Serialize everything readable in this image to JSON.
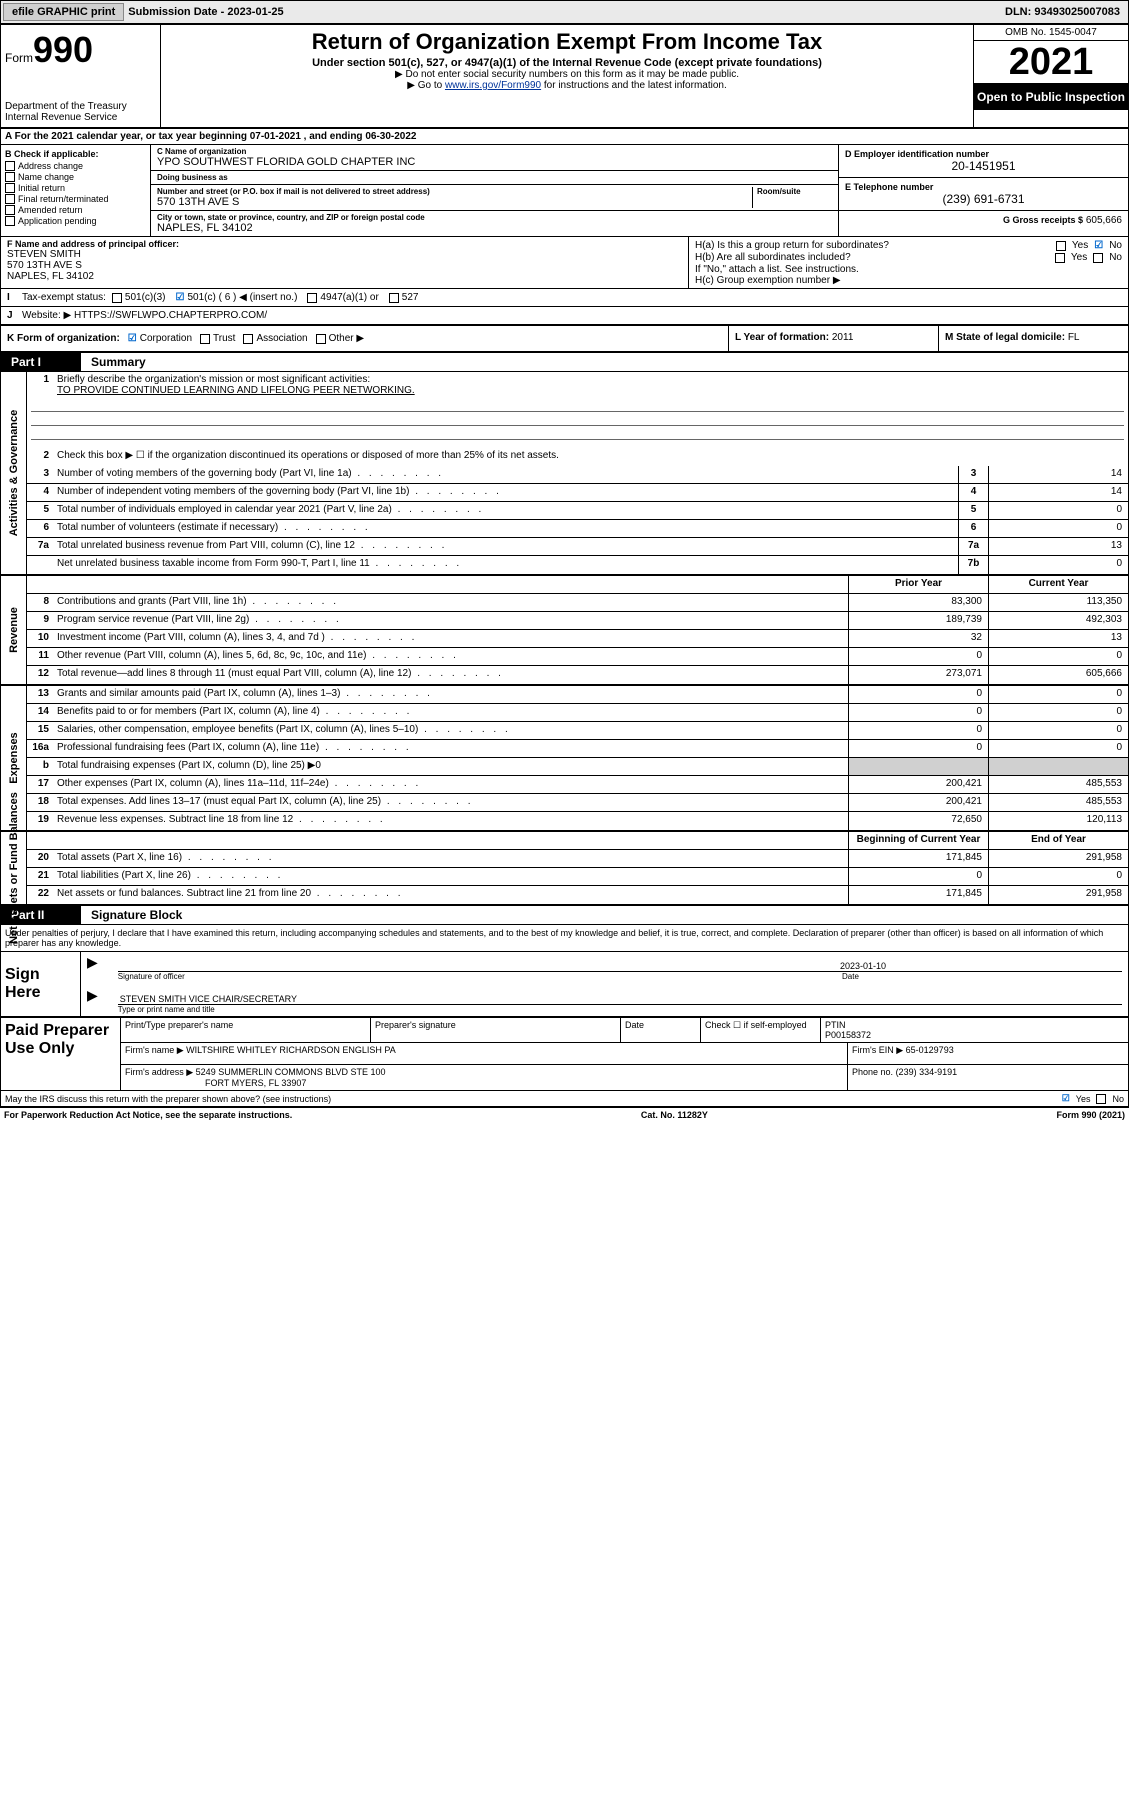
{
  "top_bar": {
    "efile": "efile GRAPHIC print",
    "sub_date_label": "Submission Date - ",
    "sub_date": "2023-01-25",
    "dln": "DLN: 93493025007083"
  },
  "header": {
    "form_word": "Form",
    "form_num": "990",
    "dept": "Department of the Treasury",
    "irs": "Internal Revenue Service",
    "title": "Return of Organization Exempt From Income Tax",
    "sub": "Under section 501(c), 527, or 4947(a)(1) of the Internal Revenue Code (except private foundations)",
    "note1": "▶ Do not enter social security numbers on this form as it may be made public.",
    "note2_pre": "▶ Go to ",
    "note2_link": "www.irs.gov/Form990",
    "note2_post": " for instructions and the latest information.",
    "omb": "OMB No. 1545-0047",
    "year": "2021",
    "open": "Open to Public Inspection"
  },
  "row_a": "A For the 2021 calendar year, or tax year beginning 07-01-2021   , and ending 06-30-2022",
  "col_b": {
    "hdr": "B Check if applicable:",
    "items": [
      "Address change",
      "Name change",
      "Initial return",
      "Final return/terminated",
      "Amended return",
      "Application pending"
    ]
  },
  "col_c": {
    "name_lbl": "C Name of organization",
    "name": "YPO SOUTHWEST FLORIDA GOLD CHAPTER INC",
    "dba_lbl": "Doing business as",
    "dba": "",
    "street_lbl": "Number and street (or P.O. box if mail is not delivered to street address)",
    "room_lbl": "Room/suite",
    "street": "570 13TH AVE S",
    "city_lbl": "City or town, state or province, country, and ZIP or foreign postal code",
    "city": "NAPLES, FL  34102"
  },
  "col_de": {
    "d_lbl": "D Employer identification number",
    "d_val": "20-1451951",
    "e_lbl": "E Telephone number",
    "e_val": "(239) 691-6731",
    "g_lbl": "G Gross receipts $",
    "g_val": "605,666"
  },
  "row_f": {
    "lbl": "F Name and address of principal officer:",
    "name": "STEVEN SMITH",
    "addr1": "570 13TH AVE S",
    "addr2": "NAPLES, FL  34102"
  },
  "row_h": {
    "ha": "H(a)  Is this a group return for subordinates?",
    "hb": "H(b)  Are all subordinates included?",
    "hb_note": "If \"No,\" attach a list. See instructions.",
    "hc": "H(c)  Group exemption number ▶",
    "yes": "Yes",
    "no": "No"
  },
  "row_i": {
    "lbl": "Tax-exempt status:",
    "o1": "501(c)(3)",
    "o2": "501(c) ( 6 ) ◀ (insert no.)",
    "o3": "4947(a)(1) or",
    "o4": "527"
  },
  "row_j": {
    "lbl": "Website: ▶",
    "val": "HTTPS://SWFLWPO.CHAPTERPRO.COM/"
  },
  "row_k": {
    "lbl": "K Form of organization:",
    "o1": "Corporation",
    "o2": "Trust",
    "o3": "Association",
    "o4": "Other ▶"
  },
  "row_l": {
    "lbl": "L Year of formation:",
    "val": "2011"
  },
  "row_m": {
    "lbl": "M State of legal domicile:",
    "val": "FL"
  },
  "part1": {
    "label": "Part I",
    "title": "Summary"
  },
  "summary": {
    "governance_label": "Activities & Governance",
    "revenue_label": "Revenue",
    "expenses_label": "Expenses",
    "netassets_label": "Net Assets or Fund Balances",
    "q1": "Briefly describe the organization's mission or most significant activities:",
    "q1_val": "TO PROVIDE CONTINUED LEARNING AND LIFELONG PEER NETWORKING.",
    "q2": "Check this box ▶ ☐ if the organization discontinued its operations or disposed of more than 25% of its net assets.",
    "lines": [
      {
        "n": "3",
        "t": "Number of voting members of the governing body (Part VI, line 1a)",
        "box": "3",
        "v2": "14"
      },
      {
        "n": "4",
        "t": "Number of independent voting members of the governing body (Part VI, line 1b)",
        "box": "4",
        "v2": "14"
      },
      {
        "n": "5",
        "t": "Total number of individuals employed in calendar year 2021 (Part V, line 2a)",
        "box": "5",
        "v2": "0"
      },
      {
        "n": "6",
        "t": "Total number of volunteers (estimate if necessary)",
        "box": "6",
        "v2": "0"
      },
      {
        "n": "7a",
        "t": "Total unrelated business revenue from Part VIII, column (C), line 12",
        "box": "7a",
        "v2": "13"
      },
      {
        "n": "",
        "t": "Net unrelated business taxable income from Form 990-T, Part I, line 11",
        "box": "7b",
        "v2": "0"
      }
    ],
    "col_prior": "Prior Year",
    "col_current": "Current Year",
    "col_begin": "Beginning of Current Year",
    "col_end": "End of Year",
    "rev": [
      {
        "n": "8",
        "t": "Contributions and grants (Part VIII, line 1h)",
        "v1": "83,300",
        "v2": "113,350"
      },
      {
        "n": "9",
        "t": "Program service revenue (Part VIII, line 2g)",
        "v1": "189,739",
        "v2": "492,303"
      },
      {
        "n": "10",
        "t": "Investment income (Part VIII, column (A), lines 3, 4, and 7d )",
        "v1": "32",
        "v2": "13"
      },
      {
        "n": "11",
        "t": "Other revenue (Part VIII, column (A), lines 5, 6d, 8c, 9c, 10c, and 11e)",
        "v1": "0",
        "v2": "0"
      },
      {
        "n": "12",
        "t": "Total revenue—add lines 8 through 11 (must equal Part VIII, column (A), line 12)",
        "v1": "273,071",
        "v2": "605,666"
      }
    ],
    "exp": [
      {
        "n": "13",
        "t": "Grants and similar amounts paid (Part IX, column (A), lines 1–3)",
        "v1": "0",
        "v2": "0"
      },
      {
        "n": "14",
        "t": "Benefits paid to or for members (Part IX, column (A), line 4)",
        "v1": "0",
        "v2": "0"
      },
      {
        "n": "15",
        "t": "Salaries, other compensation, employee benefits (Part IX, column (A), lines 5–10)",
        "v1": "0",
        "v2": "0"
      },
      {
        "n": "16a",
        "t": "Professional fundraising fees (Part IX, column (A), line 11e)",
        "v1": "0",
        "v2": "0"
      },
      {
        "n": "b",
        "t": "Total fundraising expenses (Part IX, column (D), line 25) ▶0",
        "shaded": true
      },
      {
        "n": "17",
        "t": "Other expenses (Part IX, column (A), lines 11a–11d, 11f–24e)",
        "v1": "200,421",
        "v2": "485,553"
      },
      {
        "n": "18",
        "t": "Total expenses. Add lines 13–17 (must equal Part IX, column (A), line 25)",
        "v1": "200,421",
        "v2": "485,553"
      },
      {
        "n": "19",
        "t": "Revenue less expenses. Subtract line 18 from line 12",
        "v1": "72,650",
        "v2": "120,113"
      }
    ],
    "net": [
      {
        "n": "20",
        "t": "Total assets (Part X, line 16)",
        "v1": "171,845",
        "v2": "291,958"
      },
      {
        "n": "21",
        "t": "Total liabilities (Part X, line 26)",
        "v1": "0",
        "v2": "0"
      },
      {
        "n": "22",
        "t": "Net assets or fund balances. Subtract line 21 from line 20",
        "v1": "171,845",
        "v2": "291,958"
      }
    ]
  },
  "part2": {
    "label": "Part II",
    "title": "Signature Block"
  },
  "sig": {
    "decl": "Under penalties of perjury, I declare that I have examined this return, including accompanying schedules and statements, and to the best of my knowledge and belief, it is true, correct, and complete. Declaration of preparer (other than officer) is based on all information of which preparer has any knowledge.",
    "sign_here": "Sign Here",
    "sig_of_officer": "Signature of officer",
    "date_lbl": "Date",
    "date_val": "2023-01-10",
    "officer_name": "STEVEN SMITH  VICE CHAIR/SECRETARY",
    "type_name": "Type or print name and title"
  },
  "paid": {
    "label": "Paid Preparer Use Only",
    "print_name_lbl": "Print/Type preparer's name",
    "print_name": "",
    "prep_sig_lbl": "Preparer's signature",
    "date_lbl": "Date",
    "check_lbl": "Check ☐ if self-employed",
    "ptin_lbl": "PTIN",
    "ptin": "P00158372",
    "firm_name_lbl": "Firm's name   ▶",
    "firm_name": "WILTSHIRE WHITLEY RICHARDSON ENGLISH PA",
    "firm_ein_lbl": "Firm's EIN ▶",
    "firm_ein": "65-0129793",
    "firm_addr_lbl": "Firm's address ▶",
    "firm_addr1": "5249 SUMMERLIN COMMONS BLVD STE 100",
    "firm_addr2": "FORT MYERS, FL  33907",
    "phone_lbl": "Phone no.",
    "phone": "(239) 334-9191"
  },
  "footer": {
    "discuss": "May the IRS discuss this return with the preparer shown above? (see instructions)",
    "yes": "Yes",
    "no": "No",
    "paperwork": "For Paperwork Reduction Act Notice, see the separate instructions.",
    "cat": "Cat. No. 11282Y",
    "form": "Form 990 (2021)"
  },
  "colors": {
    "link": "#003399",
    "check": "#0066cc",
    "shade": "#d0d0d0"
  }
}
